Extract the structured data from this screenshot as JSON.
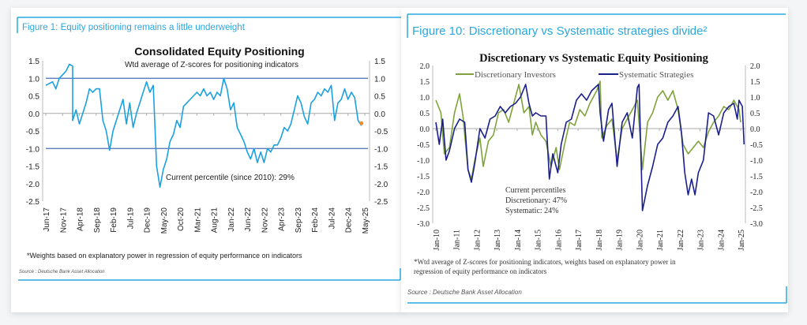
{
  "left_panel": {
    "figure_title": "Figure 1: Equity positioning remains a little underweight",
    "footnote": "*Weights based on explanatory power in regression of equity performance on indicators",
    "source": "Source : Deutsche Bank Asset Allocation"
  },
  "right_panel": {
    "figure_title": "Figure 10: Discretionary vs Systematic strategies divide²",
    "footnote_line1": "*Wtd average of Z-scores for positioning indicators, weights based on explanatory power in",
    "footnote_line2": "regression of equity performance on indicators",
    "source": "Source : Deutsche Bank Asset Allocation"
  },
  "colors": {
    "accent": "#29a8e0",
    "line1": "#1ba1e2",
    "threshold": "#4a6fb5",
    "last_point": "#f28c28",
    "discretionary": "#7fa33a",
    "systematic": "#1a1f8c"
  },
  "chart_data": [
    {
      "type": "line",
      "title": "Consolidated Equity Positioning",
      "subtitle": "Wtd average of Z-scores for positioning indicators",
      "annotation": "Current percentile (since 2010): 29%",
      "ylim": [
        -2.5,
        1.5
      ],
      "yticks": [
        "1.5",
        "1.0",
        "0.5",
        "0.0",
        "-0.5",
        "-1.0",
        "-1.5",
        "-2.0",
        "-2.5"
      ],
      "xticks": [
        "Jun-17",
        "Nov-17",
        "Apr-18",
        "Sep-18",
        "Feb-19",
        "Jul-19",
        "Dec-19",
        "May-20",
        "Oct-20",
        "Mar-21",
        "Aug-21",
        "Jan-22",
        "Jun-22",
        "Nov-22",
        "Apr-23",
        "Sep-23",
        "Feb-24",
        "Jul-24",
        "Dec-24",
        "May-25"
      ],
      "reference_lines": [
        1.0,
        -1.0
      ],
      "last_point": [
        "2025-04",
        -0.28
      ],
      "series": [
        {
          "points": [
            [
              "2017-06",
              0.8
            ],
            [
              "2017-08",
              0.9
            ],
            [
              "2017-09",
              0.7
            ],
            [
              "2017-10",
              1.0
            ],
            [
              "2017-11",
              1.1
            ],
            [
              "2017-12",
              1.2
            ],
            [
              "2018-01",
              1.4
            ],
            [
              "2018-02",
              1.35
            ],
            [
              "2018-02",
              -0.2
            ],
            [
              "2018-03",
              0.1
            ],
            [
              "2018-04",
              -0.3
            ],
            [
              "2018-05",
              0.0
            ],
            [
              "2018-06",
              0.3
            ],
            [
              "2018-07",
              0.7
            ],
            [
              "2018-08",
              0.6
            ],
            [
              "2018-09",
              0.7
            ],
            [
              "2018-10",
              0.7
            ],
            [
              "2018-11",
              -0.2
            ],
            [
              "2018-12",
              -0.5
            ],
            [
              "2019-01",
              -1.05
            ],
            [
              "2019-02",
              -0.5
            ],
            [
              "2019-03",
              -0.2
            ],
            [
              "2019-04",
              0.1
            ],
            [
              "2019-05",
              0.4
            ],
            [
              "2019-06",
              -0.3
            ],
            [
              "2019-07",
              0.3
            ],
            [
              "2019-08",
              -0.4
            ],
            [
              "2019-09",
              0.0
            ],
            [
              "2019-10",
              0.3
            ],
            [
              "2019-11",
              0.6
            ],
            [
              "2019-12",
              0.9
            ],
            [
              "2020-01",
              0.6
            ],
            [
              "2020-02",
              0.8
            ],
            [
              "2020-03",
              -1.5
            ],
            [
              "2020-04",
              -2.1
            ],
            [
              "2020-05",
              -1.6
            ],
            [
              "2020-06",
              -1.3
            ],
            [
              "2020-07",
              -0.8
            ],
            [
              "2020-08",
              -0.6
            ],
            [
              "2020-09",
              -0.2
            ],
            [
              "2020-10",
              -0.4
            ],
            [
              "2020-11",
              0.2
            ],
            [
              "2020-12",
              0.3
            ],
            [
              "2021-01",
              0.4
            ],
            [
              "2021-02",
              0.5
            ],
            [
              "2021-03",
              0.6
            ],
            [
              "2021-04",
              0.5
            ],
            [
              "2021-05",
              0.7
            ],
            [
              "2021-06",
              0.5
            ],
            [
              "2021-07",
              0.6
            ],
            [
              "2021-08",
              0.4
            ],
            [
              "2021-09",
              0.6
            ],
            [
              "2021-10",
              0.5
            ],
            [
              "2021-11",
              1.0
            ],
            [
              "2021-12",
              0.7
            ],
            [
              "2022-01",
              0.1
            ],
            [
              "2022-02",
              0.3
            ],
            [
              "2022-03",
              -0.4
            ],
            [
              "2022-04",
              -0.6
            ],
            [
              "2022-05",
              -0.8
            ],
            [
              "2022-06",
              -1.1
            ],
            [
              "2022-07",
              -1.3
            ],
            [
              "2022-08",
              -1.0
            ],
            [
              "2022-09",
              -1.4
            ],
            [
              "2022-10",
              -1.1
            ],
            [
              "2022-11",
              -1.4
            ],
            [
              "2022-12",
              -1.0
            ],
            [
              "2023-01",
              -1.1
            ],
            [
              "2023-02",
              -0.9
            ],
            [
              "2023-03",
              -0.9
            ],
            [
              "2023-04",
              -0.7
            ],
            [
              "2023-05",
              -0.4
            ],
            [
              "2023-06",
              -0.5
            ],
            [
              "2023-07",
              -0.3
            ],
            [
              "2023-08",
              0.1
            ],
            [
              "2023-09",
              0.5
            ],
            [
              "2023-10",
              0.3
            ],
            [
              "2023-11",
              -0.1
            ],
            [
              "2023-12",
              -0.3
            ],
            [
              "2024-01",
              0.3
            ],
            [
              "2024-02",
              0.4
            ],
            [
              "2024-03",
              0.6
            ],
            [
              "2024-04",
              0.5
            ],
            [
              "2024-05",
              0.7
            ],
            [
              "2024-06",
              0.6
            ],
            [
              "2024-07",
              0.8
            ],
            [
              "2024-08",
              -0.2
            ],
            [
              "2024-09",
              0.3
            ],
            [
              "2024-10",
              0.4
            ],
            [
              "2024-11",
              0.7
            ],
            [
              "2024-12",
              0.4
            ],
            [
              "2025-01",
              0.6
            ],
            [
              "2025-02",
              0.45
            ],
            [
              "2025-03",
              -0.2
            ],
            [
              "2025-04",
              -0.35
            ]
          ]
        }
      ]
    },
    {
      "type": "line",
      "title": "Discretionary  vs Systematic Equity Positioning",
      "annotation": [
        "Current percentiles",
        "Discretionary: 47%",
        "Systematic: 24%"
      ],
      "ylim": [
        -3.0,
        2.0
      ],
      "yticks": [
        "2.0",
        "1.5",
        "1.0",
        "0.5",
        "0.0",
        "-0.5",
        "-1.0",
        "-1.5",
        "-2.0",
        "-2.5",
        "-3.0"
      ],
      "xticks": [
        "Jan-10",
        "Jan-11",
        "Jan-12",
        "Jan-13",
        "Jan-14",
        "Jan-15",
        "Jan-16",
        "Jan-17",
        "Jan-18",
        "Jan-19",
        "Jan-20",
        "Jan-21",
        "Jan-22",
        "Jan-23",
        "Jan-24",
        "Jan-25"
      ],
      "legend": "top",
      "series": [
        {
          "name": "Discretionary Investors",
          "points": [
            [
              "2010-01",
              0.9
            ],
            [
              "2010-04",
              0.5
            ],
            [
              "2010-06",
              -0.8
            ],
            [
              "2010-09",
              -0.6
            ],
            [
              "2010-12",
              0.5
            ],
            [
              "2011-03",
              1.1
            ],
            [
              "2011-05",
              0.4
            ],
            [
              "2011-08",
              -1.3
            ],
            [
              "2011-10",
              -1.6
            ],
            [
              "2011-12",
              -1.0
            ],
            [
              "2012-03",
              -0.3
            ],
            [
              "2012-05",
              -1.2
            ],
            [
              "2012-08",
              -0.4
            ],
            [
              "2012-11",
              -0.2
            ],
            [
              "2013-02",
              0.5
            ],
            [
              "2013-05",
              0.6
            ],
            [
              "2013-08",
              0.2
            ],
            [
              "2013-11",
              0.8
            ],
            [
              "2014-02",
              1.4
            ],
            [
              "2014-05",
              0.5
            ],
            [
              "2014-08",
              0.7
            ],
            [
              "2014-10",
              -0.2
            ],
            [
              "2014-12",
              0.2
            ],
            [
              "2015-03",
              -0.2
            ],
            [
              "2015-06",
              -0.4
            ],
            [
              "2015-09",
              -1.2
            ],
            [
              "2015-12",
              -0.6
            ],
            [
              "2016-02",
              -1.3
            ],
            [
              "2016-05",
              -0.5
            ],
            [
              "2016-08",
              0.2
            ],
            [
              "2016-11",
              0.1
            ],
            [
              "2017-02",
              0.6
            ],
            [
              "2017-05",
              0.4
            ],
            [
              "2017-08",
              0.8
            ],
            [
              "2017-12",
              1.2
            ],
            [
              "2018-02",
              1.5
            ],
            [
              "2018-03",
              -0.3
            ],
            [
              "2018-06",
              0.1
            ],
            [
              "2018-09",
              0.3
            ],
            [
              "2018-12",
              -1.0
            ],
            [
              "2019-03",
              0.0
            ],
            [
              "2019-06",
              0.3
            ],
            [
              "2019-09",
              0.6
            ],
            [
              "2019-12",
              0.9
            ],
            [
              "2020-03",
              -1.3
            ],
            [
              "2020-06",
              0.2
            ],
            [
              "2020-09",
              0.5
            ],
            [
              "2020-12",
              1.0
            ],
            [
              "2021-03",
              1.2
            ],
            [
              "2021-06",
              0.9
            ],
            [
              "2021-09",
              1.2
            ],
            [
              "2021-12",
              0.6
            ],
            [
              "2022-03",
              -0.5
            ],
            [
              "2022-06",
              -0.8
            ],
            [
              "2022-09",
              -0.6
            ],
            [
              "2022-12",
              -0.4
            ],
            [
              "2023-03",
              -0.6
            ],
            [
              "2023-06",
              -0.1
            ],
            [
              "2023-09",
              0.2
            ],
            [
              "2023-12",
              0.4
            ],
            [
              "2024-03",
              0.7
            ],
            [
              "2024-06",
              0.6
            ],
            [
              "2024-09",
              0.9
            ],
            [
              "2024-12",
              0.6
            ],
            [
              "2025-01",
              0.2
            ]
          ]
        },
        {
          "name": "Systematic Strategies",
          "points": [
            [
              "2010-01",
              0.2
            ],
            [
              "2010-03",
              -0.5
            ],
            [
              "2010-05",
              0.3
            ],
            [
              "2010-07",
              -1.0
            ],
            [
              "2010-09",
              -0.7
            ],
            [
              "2010-12",
              0.0
            ],
            [
              "2011-03",
              0.3
            ],
            [
              "2011-06",
              0.2
            ],
            [
              "2011-08",
              -1.3
            ],
            [
              "2011-10",
              -1.7
            ],
            [
              "2011-12",
              -1.1
            ],
            [
              "2012-03",
              0.0
            ],
            [
              "2012-06",
              -0.3
            ],
            [
              "2012-09",
              0.3
            ],
            [
              "2012-12",
              0.4
            ],
            [
              "2013-03",
              0.7
            ],
            [
              "2013-06",
              0.5
            ],
            [
              "2013-09",
              0.7
            ],
            [
              "2013-12",
              0.8
            ],
            [
              "2014-03",
              1.0
            ],
            [
              "2014-06",
              1.4
            ],
            [
              "2014-08",
              0.8
            ],
            [
              "2014-10",
              0.4
            ],
            [
              "2014-12",
              0.5
            ],
            [
              "2015-03",
              0.4
            ],
            [
              "2015-06",
              0.4
            ],
            [
              "2015-08",
              -1.6
            ],
            [
              "2015-10",
              -0.8
            ],
            [
              "2016-01",
              -1.4
            ],
            [
              "2016-03",
              -0.5
            ],
            [
              "2016-06",
              0.2
            ],
            [
              "2016-09",
              0.3
            ],
            [
              "2016-12",
              0.9
            ],
            [
              "2017-03",
              1.1
            ],
            [
              "2017-06",
              0.9
            ],
            [
              "2017-09",
              1.2
            ],
            [
              "2018-01",
              1.4
            ],
            [
              "2018-02",
              0.5
            ],
            [
              "2018-04",
              -0.4
            ],
            [
              "2018-07",
              0.6
            ],
            [
              "2018-09",
              0.8
            ],
            [
              "2018-12",
              -1.2
            ],
            [
              "2019-03",
              0.2
            ],
            [
              "2019-06",
              0.5
            ],
            [
              "2019-09",
              -0.3
            ],
            [
              "2019-12",
              1.3
            ],
            [
              "2020-01",
              1.4
            ],
            [
              "2020-03",
              -2.6
            ],
            [
              "2020-06",
              -1.8
            ],
            [
              "2020-09",
              -1.2
            ],
            [
              "2020-12",
              -0.5
            ],
            [
              "2021-03",
              -0.3
            ],
            [
              "2021-06",
              0.2
            ],
            [
              "2021-09",
              0.4
            ],
            [
              "2021-12",
              0.7
            ],
            [
              "2022-02",
              -0.1
            ],
            [
              "2022-04",
              -1.4
            ],
            [
              "2022-06",
              -2.1
            ],
            [
              "2022-08",
              -1.6
            ],
            [
              "2022-10",
              -2.1
            ],
            [
              "2022-12",
              -1.4
            ],
            [
              "2023-03",
              -1.0
            ],
            [
              "2023-06",
              0.5
            ],
            [
              "2023-09",
              0.4
            ],
            [
              "2023-12",
              -0.2
            ],
            [
              "2024-03",
              0.5
            ],
            [
              "2024-06",
              0.7
            ],
            [
              "2024-09",
              0.8
            ],
            [
              "2024-11",
              0.3
            ],
            [
              "2024-12",
              0.9
            ],
            [
              "2025-02",
              0.7
            ],
            [
              "2025-03",
              -0.5
            ]
          ]
        }
      ]
    }
  ]
}
